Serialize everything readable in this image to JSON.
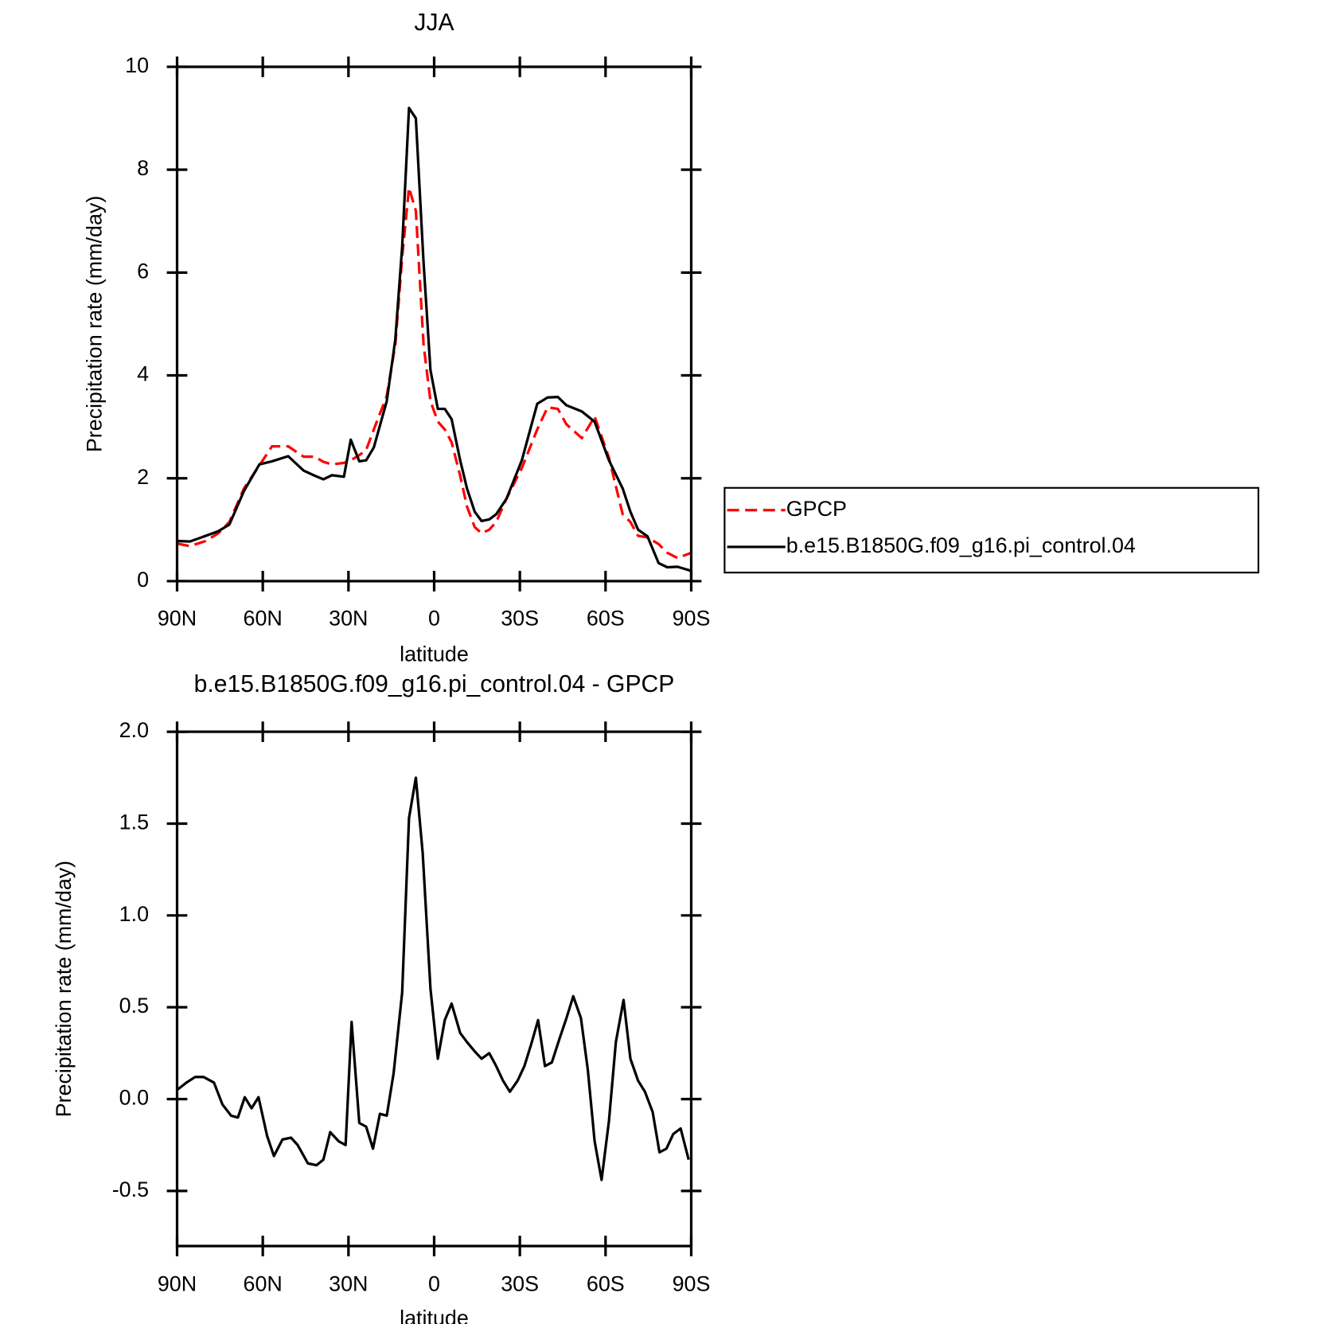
{
  "chart_data": [
    {
      "type": "line",
      "title": "JJA",
      "xlabel": "latitude",
      "ylabel": "Precipitation rate (mm/day)",
      "x": [
        90.0,
        85.5,
        80.0,
        75.6,
        71.7,
        66.6,
        61.2,
        56.8,
        51.1,
        45.7,
        41.8,
        38.8,
        35.8,
        31.6,
        29.2,
        26.2,
        23.8,
        21.1,
        16.6,
        13.6,
        11.2,
        8.8,
        6.4,
        3.7,
        1.3,
        -1.3,
        -3.7,
        -6.1,
        -9.1,
        -11.5,
        -14.2,
        -16.6,
        -19.3,
        -21.7,
        -25.3,
        -30.7,
        -36.1,
        -39.7,
        -43.3,
        -46.3,
        -51.7,
        -56.2,
        -61.2,
        -66.0,
        -68.7,
        -71.4,
        -74.7,
        -78.6,
        -81.6,
        -85.2,
        -90.0
      ],
      "series": [
        {
          "name": "GPCP",
          "color": "#ff0000",
          "dashed": true,
          "values": [
            0.73,
            0.68,
            0.78,
            0.93,
            1.15,
            1.8,
            2.25,
            2.62,
            2.62,
            2.42,
            2.42,
            2.32,
            2.27,
            2.3,
            2.35,
            2.45,
            2.55,
            2.95,
            3.6,
            4.6,
            6.3,
            7.65,
            7.2,
            4.6,
            3.5,
            3.1,
            2.95,
            2.7,
            2.05,
            1.45,
            1.05,
            0.93,
            1.0,
            1.15,
            1.6,
            2.2,
            2.95,
            3.38,
            3.35,
            3.05,
            2.78,
            3.2,
            2.4,
            1.3,
            1.15,
            0.88,
            0.85,
            0.72,
            0.55,
            0.45,
            0.55
          ]
        },
        {
          "name": "b.e15.B1850G.f09_g16.pi_control.04",
          "color": "#000000",
          "dashed": false,
          "values": [
            0.78,
            0.77,
            0.88,
            0.97,
            1.1,
            1.75,
            2.27,
            2.33,
            2.43,
            2.15,
            2.05,
            1.98,
            2.06,
            2.03,
            2.75,
            2.33,
            2.35,
            2.6,
            3.5,
            4.7,
            6.5,
            9.2,
            9.0,
            6.2,
            4.1,
            3.35,
            3.35,
            3.15,
            2.35,
            1.8,
            1.35,
            1.17,
            1.2,
            1.3,
            1.6,
            2.35,
            3.45,
            3.57,
            3.58,
            3.42,
            3.3,
            3.1,
            2.35,
            1.8,
            1.35,
            1.0,
            0.87,
            0.35,
            0.27,
            0.28,
            0.2
          ]
        }
      ],
      "xlim": [
        90,
        -90
      ],
      "xticks": [
        {
          "value": 90,
          "label": "90N"
        },
        {
          "value": 60,
          "label": "60N"
        },
        {
          "value": 30,
          "label": "30N"
        },
        0,
        {
          "value": -30,
          "label": "30S"
        },
        {
          "value": -60,
          "label": "60S"
        },
        {
          "value": -90,
          "label": "90S"
        }
      ],
      "ylim": [
        0,
        10
      ],
      "yticks": [
        0,
        2,
        4,
        6,
        8,
        10
      ],
      "legend": "right"
    },
    {
      "type": "line",
      "title": "b.e15.B1850G.f09_g16.pi_control.04 - GPCP",
      "xlabel": "latitude",
      "ylabel": "Precipitation rate (mm/day)",
      "x": [
        90.0,
        86.7,
        83.7,
        80.7,
        77.1,
        74.1,
        71.1,
        68.7,
        66.3,
        63.9,
        61.5,
        58.5,
        56.1,
        53.1,
        50.1,
        47.8,
        44.2,
        41.2,
        38.8,
        36.4,
        33.4,
        31.0,
        28.9,
        26.2,
        23.8,
        21.4,
        19.0,
        16.6,
        14.2,
        11.2,
        8.8,
        6.4,
        4.0,
        1.3,
        -1.3,
        -3.7,
        -6.1,
        -9.1,
        -11.5,
        -14.2,
        -16.6,
        -19.3,
        -21.7,
        -24.1,
        -26.5,
        -29.2,
        -31.6,
        -34.0,
        -36.4,
        -38.8,
        -41.2,
        -43.9,
        -46.3,
        -48.7,
        -51.4,
        -53.8,
        -56.2,
        -58.6,
        -61.2,
        -63.6,
        -66.3,
        -68.7,
        -71.4,
        -73.8,
        -76.5,
        -78.9,
        -81.3,
        -83.7,
        -86.3,
        -89.1
      ],
      "series": [
        {
          "color": "#000000",
          "dashed": false,
          "values": [
            0.05,
            0.09,
            0.12,
            0.12,
            0.09,
            -0.03,
            -0.09,
            -0.1,
            0.01,
            -0.05,
            0.01,
            -0.2,
            -0.31,
            -0.22,
            -0.21,
            -0.25,
            -0.35,
            -0.36,
            -0.33,
            -0.18,
            -0.23,
            -0.25,
            0.42,
            -0.13,
            -0.15,
            -0.27,
            -0.08,
            -0.09,
            0.14,
            0.58,
            1.53,
            1.75,
            1.34,
            0.6,
            0.22,
            0.43,
            0.52,
            0.36,
            0.31,
            0.26,
            0.22,
            0.25,
            0.18,
            0.1,
            0.04,
            0.1,
            0.18,
            0.3,
            0.43,
            0.18,
            0.2,
            0.33,
            0.44,
            0.56,
            0.44,
            0.16,
            -0.23,
            -0.44,
            -0.12,
            0.31,
            0.54,
            0.22,
            0.1,
            0.04,
            -0.07,
            -0.29,
            -0.27,
            -0.19,
            -0.16,
            -0.33
          ]
        }
      ],
      "xlim": [
        90,
        -90
      ],
      "xticks": [
        {
          "value": 90,
          "label": "90N"
        },
        {
          "value": 60,
          "label": "60N"
        },
        {
          "value": 30,
          "label": "30N"
        },
        0,
        {
          "value": -30,
          "label": "30S"
        },
        {
          "value": -60,
          "label": "60S"
        },
        {
          "value": -90,
          "label": "90S"
        }
      ],
      "ylim": [
        -0.8,
        2.0
      ],
      "yticks": [
        -0.5,
        {
          "value": 0,
          "label": "0.0"
        },
        0.5,
        {
          "value": 1,
          "label": "1.0"
        },
        1.5,
        {
          "value": 2,
          "label": "2.0"
        }
      ]
    }
  ]
}
